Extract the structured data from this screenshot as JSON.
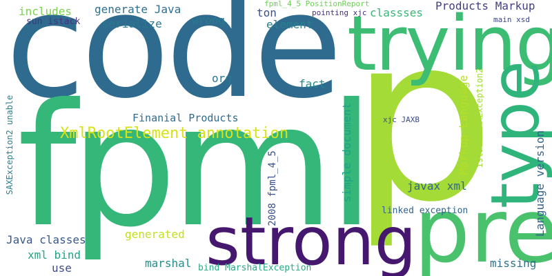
{
  "words": [
    {
      "id": "code",
      "text": "code",
      "color": "#2e6b8e"
    },
    {
      "id": "fpml",
      "text": "fpml",
      "color": "#35b779"
    },
    {
      "id": "p",
      "text": "p",
      "color": "#a5db36"
    },
    {
      "id": "trying",
      "text": "trying",
      "color": "#3dbc74"
    },
    {
      "id": "type",
      "text": "type",
      "color": "#2fb47c"
    },
    {
      "id": "pre",
      "text": "pre",
      "color": "#4ac16d"
    },
    {
      "id": "strong",
      "text": "strong",
      "color": "#46176e"
    },
    {
      "id": "xmlroot",
      "text": "XmlRootElement annotation",
      "color": "#d8e219"
    },
    {
      "id": "finanial",
      "text": "Finanial Products",
      "color": "#306a8e"
    },
    {
      "id": "includes",
      "text": "includes",
      "color": "#7ad151"
    },
    {
      "id": "generate-java",
      "text": "generate Java",
      "color": "#2e6f8e"
    },
    {
      "id": "serialize",
      "text": "serialize",
      "color": "#2a788e"
    },
    {
      "id": "wrong",
      "text": "wrong",
      "color": "#29798e"
    },
    {
      "id": "ton",
      "text": "ton",
      "color": "#3b518b"
    },
    {
      "id": "element",
      "text": "element",
      "color": "#26818e"
    },
    {
      "id": "classses",
      "text": "classses",
      "color": "#3ab679"
    },
    {
      "id": "products-markup",
      "text": "Products Markup",
      "color": "#433e85"
    },
    {
      "id": "sun-istack",
      "text": "sun istack",
      "color": "#453581"
    },
    {
      "id": "fpml-position",
      "text": "fpml_4_5 PositionReport",
      "color": "#6ece58"
    },
    {
      "id": "pointing-xjc",
      "text": "pointing xjc",
      "color": "#46307e"
    },
    {
      "id": "main-xsd",
      "text": "main xsd",
      "color": "#3f4788"
    },
    {
      "id": "org",
      "text": "org",
      "color": "#2a778e"
    },
    {
      "id": "fact",
      "text": "fact",
      "color": "#23888e"
    },
    {
      "id": "simple-document",
      "text": "simple document",
      "color": "#1fa188"
    },
    {
      "id": "markup-language",
      "text": "Markup Language",
      "color": "#b5de2b"
    },
    {
      "id": "istack-sax",
      "text": "istack SAXException2",
      "color": "#a2da37"
    },
    {
      "id": "xjc-jaxb",
      "text": "xjc JAXB",
      "color": "#3e4989"
    },
    {
      "id": "language-version",
      "text": "Language version",
      "color": "#33638d"
    },
    {
      "id": "sax-unable",
      "text": "SAXException2 unable",
      "color": "#26828e"
    },
    {
      "id": "fpml-2008",
      "text": "2008 fpml_4_5",
      "color": "#3b518b"
    },
    {
      "id": "javax-xml",
      "text": "javax xml",
      "color": "#31668e"
    },
    {
      "id": "linked-exception",
      "text": "linked exception",
      "color": "#33638d"
    },
    {
      "id": "java-classes",
      "text": "Java classes",
      "color": "#38588c"
    },
    {
      "id": "generated",
      "text": "generated",
      "color": "#c2df23"
    },
    {
      "id": "xml-bind",
      "text": "xml bind",
      "color": "#20a386"
    },
    {
      "id": "use",
      "text": "use",
      "color": "#3e4c8a"
    },
    {
      "id": "marshal",
      "text": "marshal",
      "color": "#218f8d"
    },
    {
      "id": "bind-marshal",
      "text": "bind MarshalException",
      "color": "#25ab82"
    },
    {
      "id": "missing",
      "text": "missing",
      "color": "#2d708e"
    }
  ]
}
